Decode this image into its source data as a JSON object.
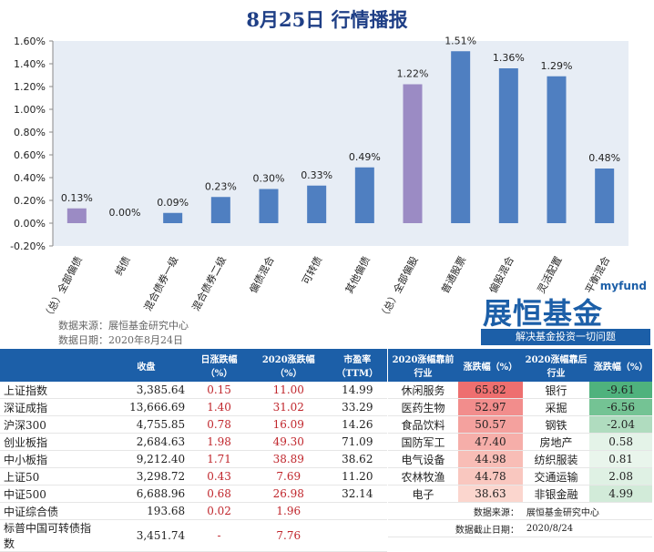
{
  "title": "8月25日  行情播报",
  "chart_data": {
    "type": "bar",
    "categories": [
      "（总）全部偏债",
      "纯债",
      "混合债券一级",
      "混合债券二级",
      "偏债混合",
      "可转债",
      "其他偏债",
      "（总）全部偏股",
      "普通股票",
      "偏股混合",
      "灵活配置",
      "平衡混合"
    ],
    "values": [
      0.13,
      0.0,
      0.09,
      0.23,
      0.3,
      0.33,
      0.49,
      1.22,
      1.51,
      1.36,
      1.29,
      0.48
    ],
    "labels": [
      "0.13%",
      "0.00%",
      "0.09%",
      "0.23%",
      "0.30%",
      "0.33%",
      "0.49%",
      "1.22%",
      "1.51%",
      "1.36%",
      "1.29%",
      "0.48%"
    ],
    "ylim": [
      -0.2,
      1.6
    ],
    "yticks": [
      "-0.20%",
      "0.00%",
      "0.20%",
      "0.40%",
      "0.60%",
      "0.80%",
      "1.00%",
      "1.20%",
      "1.40%",
      "1.60%"
    ],
    "colors": {
      "summary": "#9b8bc4",
      "normal": "#4f7fc1",
      "plot_bg": "#e7edf5"
    },
    "summary_indices": [
      0,
      7
    ]
  },
  "source": {
    "line1": "数据来源：展恒基金研究中心",
    "line2": "数据日期：2020年8月24日"
  },
  "brand": {
    "en": "myfund",
    "cn": "展恒基金",
    "slogan": "解决基金投资一切问题"
  },
  "left_table": {
    "headers": [
      "",
      "收盘",
      "日涨跌幅（%）",
      "2020涨跌幅（%）",
      "市盈率（TTM）"
    ],
    "rows": [
      {
        "name": "上证指数",
        "close": "3,385.64",
        "day": "0.15",
        "ytd": "11.00",
        "pe": "14.99"
      },
      {
        "name": "深证成指",
        "close": "13,666.69",
        "day": "1.40",
        "ytd": "31.02",
        "pe": "33.29"
      },
      {
        "name": "沪深300",
        "close": "4,755.85",
        "day": "0.78",
        "ytd": "16.09",
        "pe": "14.26"
      },
      {
        "name": "创业板指",
        "close": "2,684.63",
        "day": "1.98",
        "ytd": "49.30",
        "pe": "71.09"
      },
      {
        "name": "中小板指",
        "close": "9,212.40",
        "day": "1.71",
        "ytd": "38.89",
        "pe": "38.62"
      },
      {
        "name": "上证50",
        "close": "3,298.72",
        "day": "0.43",
        "ytd": "7.69",
        "pe": "11.20"
      },
      {
        "name": "中证500",
        "close": "6,688.96",
        "day": "0.68",
        "ytd": "26.98",
        "pe": "32.14"
      },
      {
        "name": "中证综合债",
        "close": "193.68",
        "day": "0.02",
        "ytd": "1.96",
        "pe": ""
      },
      {
        "name": "标普中国可转债指数",
        "close": "3,451.74",
        "day": "-",
        "ytd": "7.76",
        "pe": ""
      }
    ]
  },
  "right_table": {
    "headers": [
      "2020涨幅靠前行业",
      "涨跌幅（%）",
      "2020涨幅靠后行业",
      "涨跌幅（%）"
    ],
    "rows": [
      {
        "top": "休闲服务",
        "top_val": "65.82",
        "bot": "银行",
        "bot_val": "-9.61"
      },
      {
        "top": "医药生物",
        "top_val": "52.97",
        "bot": "采掘",
        "bot_val": "-6.56"
      },
      {
        "top": "食品饮料",
        "top_val": "50.57",
        "bot": "钢铁",
        "bot_val": "-2.04"
      },
      {
        "top": "国防军工",
        "top_val": "47.40",
        "bot": "房地产",
        "bot_val": "0.58"
      },
      {
        "top": "电气设备",
        "top_val": "44.98",
        "bot": "纺织服装",
        "bot_val": "0.81"
      },
      {
        "top": "农林牧渔",
        "top_val": "44.78",
        "bot": "交通运输",
        "bot_val": "2.08"
      },
      {
        "top": "电子",
        "top_val": "38.63",
        "bot": "非银金融",
        "bot_val": "4.99"
      }
    ],
    "top_colors": [
      "#ee6f6f",
      "#f28d8c",
      "#f4a19e",
      "#f6aea9",
      "#f8bdb6",
      "#f9c7bf",
      "#fbd6ce"
    ],
    "bot_colors": [
      "#4fb27d",
      "#74c394",
      "#b0dcbf",
      "#e4f3e8",
      "#e9f5ec",
      "#dff1e4",
      "#d2ebd9"
    ],
    "footer": {
      "src_label": "数据来源：",
      "src": "展恒基金研究中心",
      "date_label": "数据截止日期：",
      "date": "2020/8/24"
    }
  }
}
